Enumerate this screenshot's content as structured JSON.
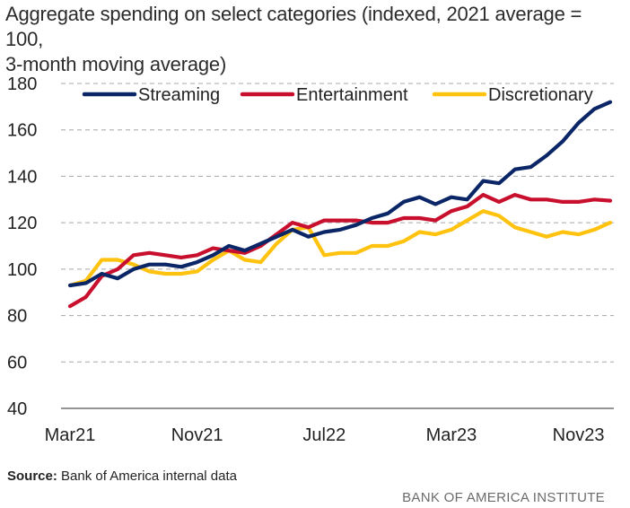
{
  "chart_data": {
    "type": "line",
    "title": "Aggregate spending on select categories (indexed, 2021 average = 100, 3-month moving average)",
    "title_line1": "Aggregate spending on select categories (indexed, 2021 average = 100,",
    "title_line2": "3-month moving average)",
    "xlabel": "",
    "ylabel": "",
    "ylim": [
      40,
      180
    ],
    "yticks": [
      40,
      60,
      80,
      100,
      120,
      140,
      160,
      180
    ],
    "grid": true,
    "legend": "top",
    "x": [
      "Mar21",
      "Apr21",
      "May21",
      "Jun21",
      "Jul21",
      "Aug21",
      "Sep21",
      "Oct21",
      "Nov21",
      "Dec21",
      "Jan22",
      "Feb22",
      "Mar22",
      "Apr22",
      "May22",
      "Jun22",
      "Jul22",
      "Aug22",
      "Sep22",
      "Oct22",
      "Nov22",
      "Dec22",
      "Jan23",
      "Feb23",
      "Mar23",
      "Apr23",
      "May23",
      "Jun23",
      "Jul23",
      "Aug23",
      "Sep23",
      "Oct23",
      "Nov23",
      "Dec23",
      "Jan24"
    ],
    "xtick_labels": [
      {
        "label": "Mar21",
        "index": 0
      },
      {
        "label": "Nov21",
        "index": 8
      },
      {
        "label": "Jul22",
        "index": 16
      },
      {
        "label": "Mar23",
        "index": 24
      },
      {
        "label": "Nov23",
        "index": 32
      }
    ],
    "series": [
      {
        "name": "Streaming",
        "color": "#0a2667",
        "values": [
          93,
          94,
          98,
          96,
          100,
          102,
          102,
          101,
          103,
          106,
          110,
          108,
          111,
          114,
          117,
          114,
          116,
          117,
          119,
          122,
          124,
          129,
          131,
          128,
          131,
          130,
          138,
          137,
          143,
          144,
          149,
          155,
          163,
          169,
          172
        ]
      },
      {
        "name": "Entertainment",
        "color": "#c8102e",
        "values": [
          84,
          88,
          97,
          100,
          106,
          107,
          106,
          105,
          106,
          109,
          108,
          107,
          110,
          115,
          120,
          118,
          121,
          121,
          121,
          120,
          120,
          122,
          122,
          121,
          125,
          127,
          132,
          129,
          132,
          130,
          130,
          129,
          129,
          130,
          129.5
        ]
      },
      {
        "name": "Discretionary",
        "color": "#ffc20e",
        "values": [
          93,
          95,
          104,
          104,
          102,
          99,
          98,
          98,
          99,
          104,
          108,
          104,
          103,
          111,
          117,
          118,
          106,
          107,
          107,
          110,
          110,
          112,
          116,
          115,
          117,
          121,
          125,
          123,
          118,
          116,
          114,
          116,
          115,
          117,
          120
        ]
      }
    ]
  },
  "footer": {
    "source_label": "Source:",
    "source_text": "Bank of America internal data",
    "brand": "BANK OF AMERICA INSTITUTE"
  }
}
